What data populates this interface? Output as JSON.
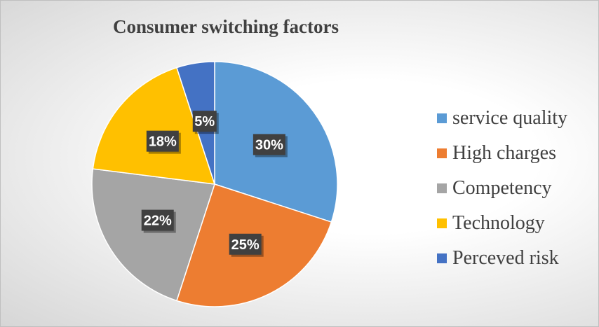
{
  "chart_data": {
    "type": "pie",
    "title": "Consumer switching factors",
    "categories": [
      "service quality",
      "High charges",
      "Competency",
      "Technology",
      "Perceved risk"
    ],
    "values": [
      30,
      25,
      22,
      18,
      5
    ],
    "data_labels": [
      "30%",
      "25%",
      "22%",
      "18%",
      "5%"
    ],
    "colors": [
      "#5B9BD5",
      "#ED7D31",
      "#A5A5A5",
      "#FFC000",
      "#4472C4"
    ],
    "legend_position": "right",
    "start_angle_deg": 0,
    "direction": "clockwise"
  }
}
